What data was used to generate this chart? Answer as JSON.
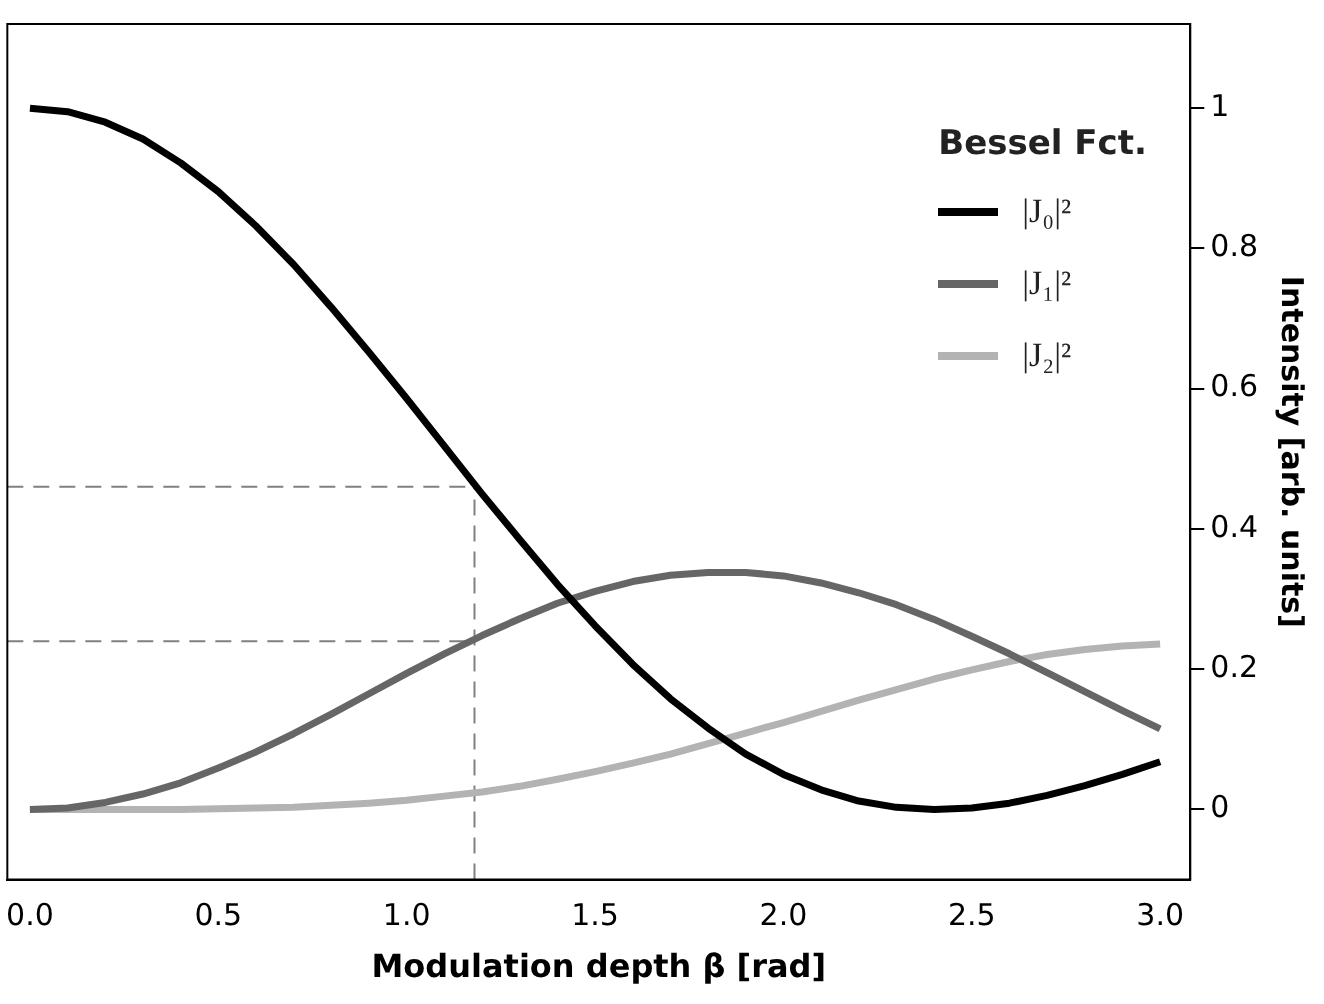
{
  "chart_data": {
    "type": "line",
    "xlabel": "Modulation depth β [rad]",
    "ylabel": "Intensity [arb. units]",
    "legend_title": "Bessel Fct.",
    "x": [
      0,
      0.1,
      0.2,
      0.3,
      0.4,
      0.5,
      0.6,
      0.7,
      0.8,
      0.9,
      1.0,
      1.1,
      1.2,
      1.3,
      1.4,
      1.5,
      1.6,
      1.7,
      1.8,
      1.9,
      2.0,
      2.1,
      2.2,
      2.3,
      2.4,
      2.5,
      2.6,
      2.7,
      2.8,
      2.9,
      3.0
    ],
    "series": [
      {
        "name": "|J₀|²",
        "color": "#000000",
        "values": [
          1,
          0.995,
          0.98,
          0.956,
          0.922,
          0.881,
          0.832,
          0.777,
          0.716,
          0.652,
          0.586,
          0.518,
          0.45,
          0.385,
          0.321,
          0.262,
          0.207,
          0.158,
          0.116,
          0.079,
          0.05,
          0.028,
          0.012,
          0.003,
          0.0,
          0.002,
          0.009,
          0.02,
          0.034,
          0.05,
          0.068
        ]
      },
      {
        "name": "|J₁|²",
        "color": "#666666",
        "values": [
          0,
          0.002,
          0.01,
          0.022,
          0.038,
          0.059,
          0.082,
          0.108,
          0.136,
          0.165,
          0.194,
          0.222,
          0.248,
          0.272,
          0.294,
          0.311,
          0.325,
          0.334,
          0.338,
          0.338,
          0.333,
          0.323,
          0.309,
          0.292,
          0.271,
          0.247,
          0.222,
          0.195,
          0.168,
          0.141,
          0.115
        ]
      },
      {
        "name": "|J₂|²",
        "color": "#b3b3b3",
        "values": [
          0,
          0.0,
          0.0,
          0.0,
          0.0,
          0.001,
          0.002,
          0.003,
          0.006,
          0.009,
          0.013,
          0.019,
          0.025,
          0.033,
          0.043,
          0.054,
          0.066,
          0.079,
          0.094,
          0.109,
          0.124,
          0.14,
          0.156,
          0.171,
          0.186,
          0.199,
          0.211,
          0.221,
          0.228,
          0.233,
          0.236
        ]
      }
    ],
    "xlim": [
      -0.06,
      3.08
    ],
    "ylim": [
      -0.1,
      1.12
    ],
    "xticks": [
      {
        "value": 0,
        "label": "0.0"
      },
      0.5,
      {
        "value": 1,
        "label": "1.0"
      },
      1.5,
      {
        "value": 2,
        "label": "2.0"
      },
      2.5,
      {
        "value": 3,
        "label": "3.0"
      }
    ],
    "yticks": [
      0,
      0.2,
      0.4,
      0.6,
      0.8,
      1
    ],
    "ref_lines": [
      {
        "axis": "x",
        "value": 1.18,
        "label": null,
        "color": "#808080",
        "line_style": "dashed"
      },
      {
        "axis": "y",
        "value": 0.46,
        "label": null,
        "color": "#808080",
        "line_style": "dashed"
      },
      {
        "axis": "y",
        "value": 0.24,
        "label": null,
        "color": "#808080",
        "line_style": "dashed"
      }
    ],
    "legend": "top right",
    "grid": false,
    "marker": "none",
    "line_style": "solid"
  }
}
